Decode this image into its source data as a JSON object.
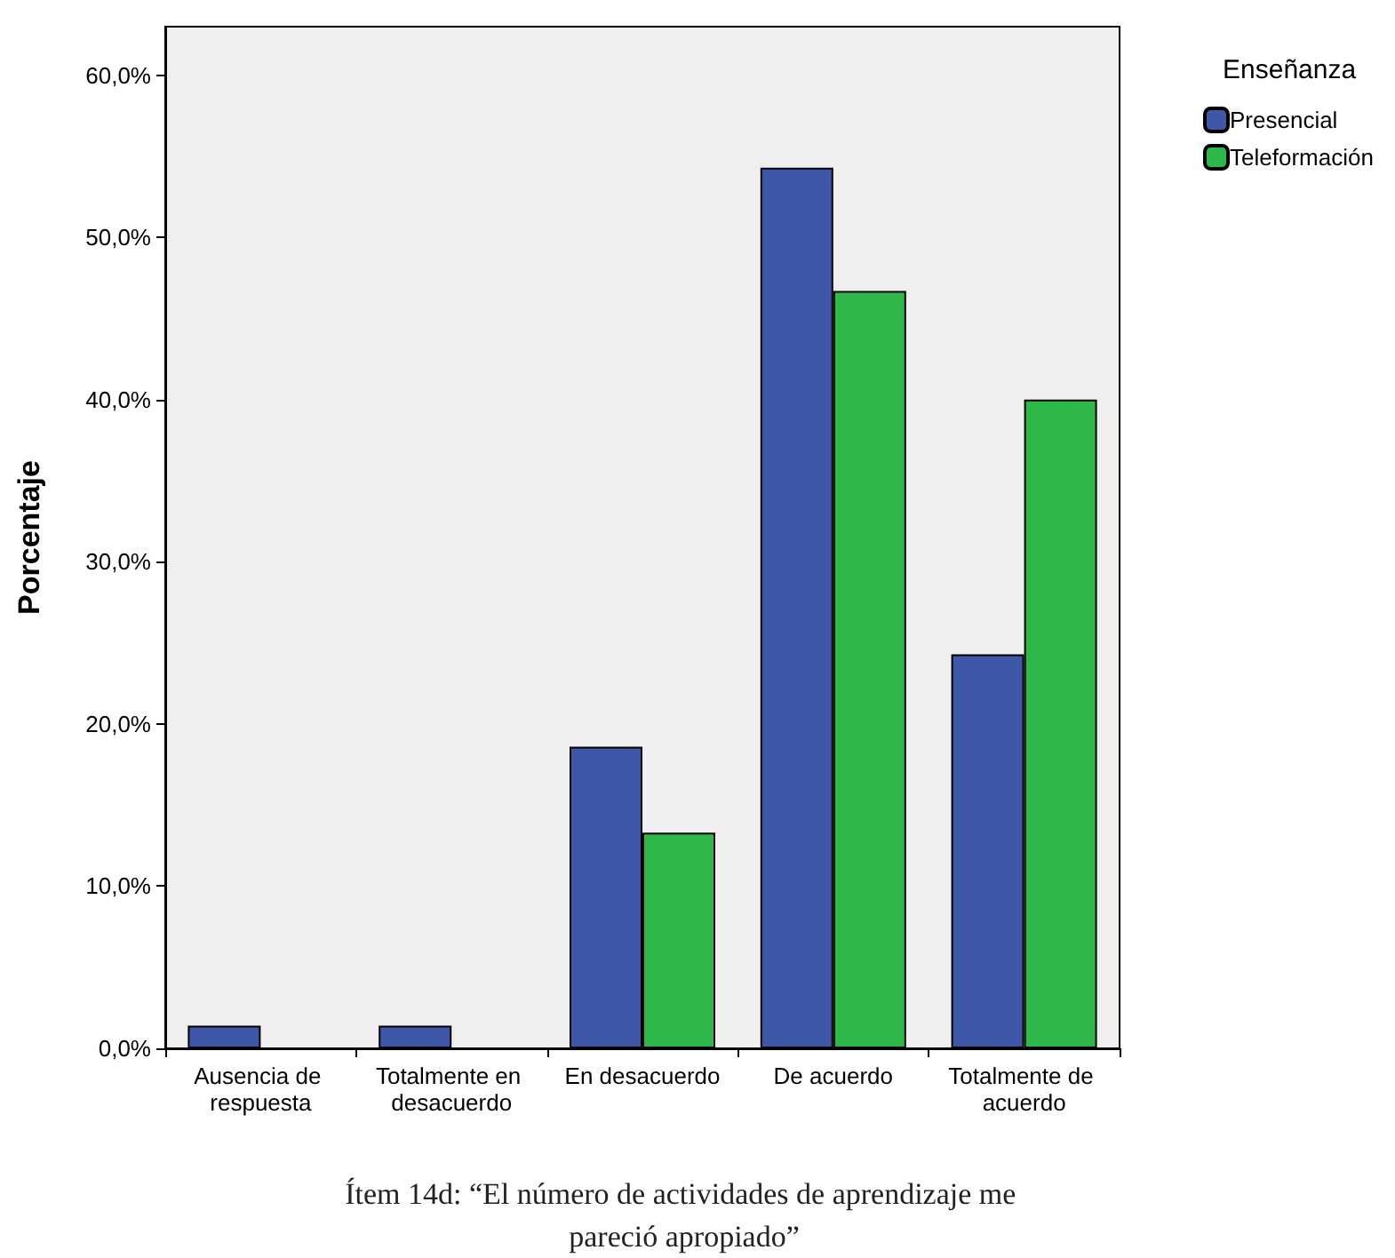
{
  "chart_data": {
    "type": "bar",
    "title": "Ítem 14d: “El número de actividades de aprendizaje me pareció apropiado”",
    "ylabel": "Porcentaje",
    "legend_title": "Enseñanza",
    "categories": [
      "Ausencia de respuesta",
      "Totalmente en desacuerdo",
      "En desacuerdo",
      "De acuerdo",
      "Totalmente de acuerdo"
    ],
    "series": [
      {
        "name": "Presencial",
        "color": "#3f57a8",
        "values": [
          1.4,
          1.4,
          18.6,
          54.3,
          24.3
        ]
      },
      {
        "name": "Teleformación",
        "color": "#2eb84a",
        "values": [
          0,
          0,
          13.3,
          46.7,
          40.0
        ]
      }
    ],
    "ylim": [
      0,
      63
    ],
    "yticks": [
      {
        "value": 0,
        "label": "0,0%"
      },
      {
        "value": 10,
        "label": "10,0%"
      },
      {
        "value": 20,
        "label": "20,0%"
      },
      {
        "value": 30,
        "label": "30,0%"
      },
      {
        "value": 40,
        "label": "40,0%"
      },
      {
        "value": 50,
        "label": "50,0%"
      },
      {
        "value": 60,
        "label": "60,0%"
      }
    ],
    "grid": false,
    "legend": "top right"
  }
}
